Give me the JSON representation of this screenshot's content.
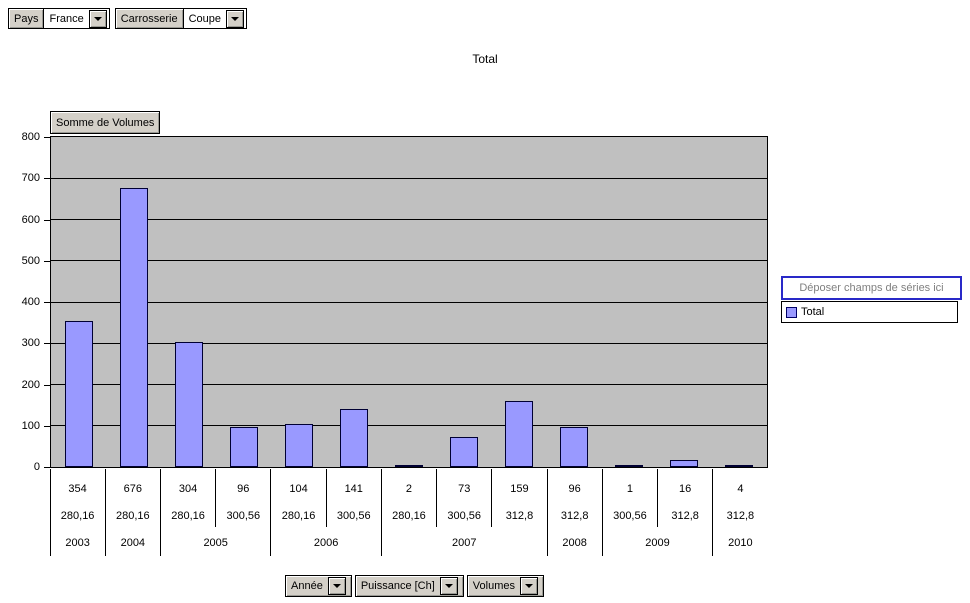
{
  "filters_top": [
    {
      "field": "Pays",
      "value": "France"
    },
    {
      "field": "Carrosserie",
      "value": "Coupe"
    }
  ],
  "chart": {
    "title": "Total",
    "value_field_button": "Somme de Volumes",
    "series_drop_zone": "Déposer champs de séries ici",
    "legend_items": [
      {
        "label": "Total",
        "color": "#9999ff"
      }
    ],
    "bottom_field_buttons": [
      "Année",
      "Puissance [Ch]",
      "Volumes"
    ]
  },
  "chart_data": {
    "type": "bar",
    "title": "Total",
    "series_name": "Total",
    "ylim": [
      0,
      800
    ],
    "yticks": [
      0,
      100,
      200,
      300,
      400,
      500,
      600,
      700,
      800
    ],
    "x_levels": [
      "Volumes",
      "Puissance [Ch]",
      "Année"
    ],
    "points": [
      {
        "year": "2003",
        "puissance": "280,16",
        "volume_label": "354",
        "value": 354
      },
      {
        "year": "2004",
        "puissance": "280,16",
        "volume_label": "676",
        "value": 676
      },
      {
        "year": "2005",
        "puissance": "280,16",
        "volume_label": "304",
        "value": 304
      },
      {
        "year": "2005",
        "puissance": "300,56",
        "volume_label": "96",
        "value": 96
      },
      {
        "year": "2006",
        "puissance": "280,16",
        "volume_label": "104",
        "value": 104
      },
      {
        "year": "2006",
        "puissance": "300,56",
        "volume_label": "141",
        "value": 141
      },
      {
        "year": "2007",
        "puissance": "280,16",
        "volume_label": "2",
        "value": 2
      },
      {
        "year": "2007",
        "puissance": "300,56",
        "volume_label": "73",
        "value": 73
      },
      {
        "year": "2007",
        "puissance": "312,8",
        "volume_label": "159",
        "value": 159
      },
      {
        "year": "2008",
        "puissance": "312,8",
        "volume_label": "96",
        "value": 96
      },
      {
        "year": "2009",
        "puissance": "300,56",
        "volume_label": "1",
        "value": 1
      },
      {
        "year": "2009",
        "puissance": "312,8",
        "volume_label": "16",
        "value": 16
      },
      {
        "year": "2010",
        "puissance": "312,8",
        "volume_label": "4",
        "value": 4
      }
    ],
    "plot_bg": "#c0c0c0",
    "bar_color": "#9999ff",
    "gridlines": true,
    "legend_position": "right"
  },
  "colors": {
    "drop_zone_border": "#2929c8",
    "drop_zone_text": "#808080",
    "button_face": "#d4d0c8",
    "plot_background": "#c0c0c0",
    "bar_fill": "#9999ff"
  }
}
